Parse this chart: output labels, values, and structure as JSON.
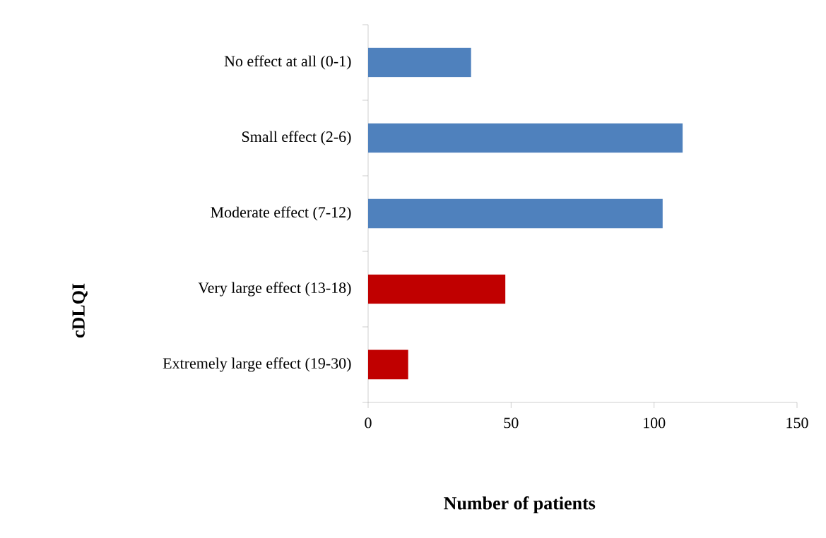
{
  "chart_data": {
    "type": "bar",
    "orientation": "horizontal",
    "xlabel": "Number of patients",
    "ylabel": "cDLQI",
    "categories": [
      "No effect at all (0-1)",
      "Small effect (2-6)",
      "Moderate effect (7-12)",
      "Very large effect (13-18)",
      "Extremely large effect (19-30)"
    ],
    "values": [
      36,
      110,
      103,
      48,
      14
    ],
    "colors": [
      "#4f81bd",
      "#4f81bd",
      "#4f81bd",
      "#c00000",
      "#c00000"
    ],
    "xlim": [
      0,
      150
    ],
    "xticks": [
      0,
      50,
      100,
      150
    ],
    "grid": false
  }
}
